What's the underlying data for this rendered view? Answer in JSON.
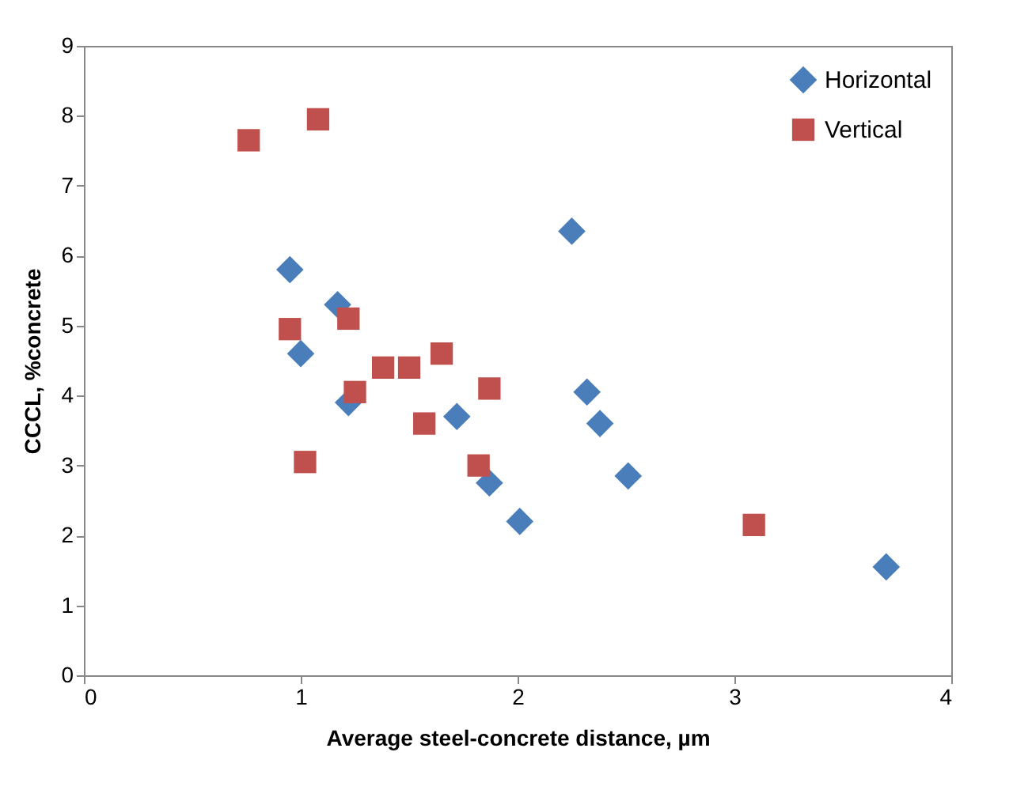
{
  "chart_data": {
    "type": "scatter",
    "xlabel": "Average steel-concrete distance,   µm",
    "ylabel": "CCCL, %concrete",
    "xlim": [
      0,
      4
    ],
    "xticks": [
      0,
      1,
      2,
      3,
      4
    ],
    "ylim": [
      0,
      9
    ],
    "yticks": [
      0,
      1,
      2,
      3,
      4,
      5,
      6,
      7,
      8,
      9
    ],
    "grid": false,
    "legend": "top right",
    "series": [
      {
        "name": "Horizontal",
        "color": "#4a7ebb",
        "marker": "diamond",
        "x": [
          0.95,
          1.0,
          1.17,
          1.22,
          1.72,
          1.87,
          2.01,
          2.25,
          2.32,
          2.38,
          2.51,
          3.7
        ],
        "values": [
          5.8,
          4.6,
          5.3,
          3.9,
          3.7,
          2.75,
          2.2,
          6.35,
          4.05,
          3.6,
          2.85,
          1.55
        ]
      },
      {
        "name": "Vertical",
        "color": "#c0504d",
        "marker": "square",
        "x": [
          0.76,
          1.08,
          0.95,
          1.02,
          1.22,
          1.25,
          1.38,
          1.5,
          1.65,
          1.57,
          1.87,
          1.82,
          3.09
        ],
        "values": [
          7.65,
          7.95,
          4.95,
          3.05,
          5.1,
          4.05,
          4.4,
          4.4,
          4.6,
          3.6,
          4.1,
          3.0,
          2.15
        ]
      }
    ]
  }
}
